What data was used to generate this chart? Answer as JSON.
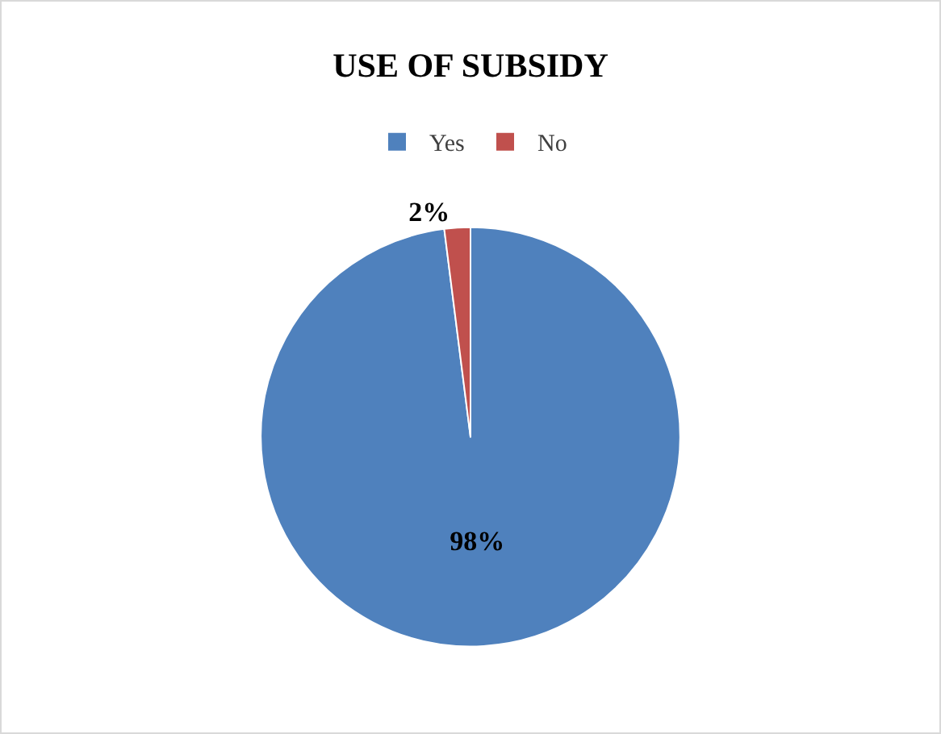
{
  "chart_data": {
    "type": "pie",
    "title": "USE OF SUBSIDY",
    "categories": [
      "Yes",
      "No"
    ],
    "values": [
      98,
      2
    ],
    "colors": [
      "#4f81bd",
      "#c0504d"
    ],
    "value_labels": [
      "98%",
      "2%"
    ],
    "legend": "top"
  }
}
